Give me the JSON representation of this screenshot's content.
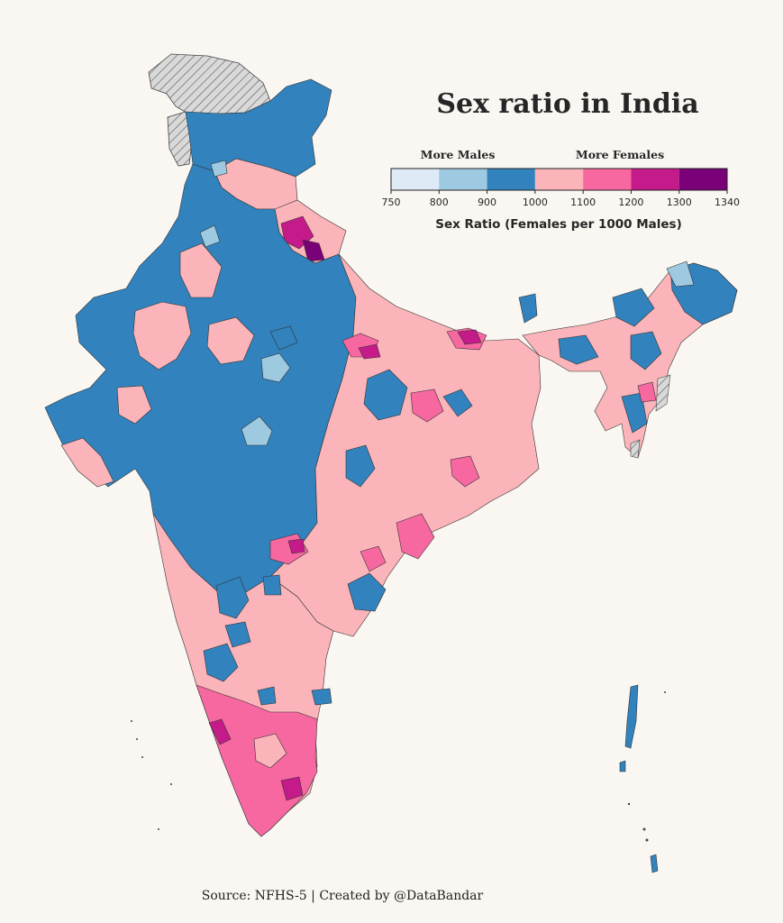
{
  "title": "Sex ratio in India",
  "legend": {
    "label_left": "More Males",
    "label_right": "More Females",
    "axis_title": "Sex Ratio (Females per 1000 Males)",
    "ticks": [
      "750",
      "800",
      "900",
      "1000",
      "1100",
      "1200",
      "1300",
      "1340"
    ],
    "bins": [
      {
        "from": 750,
        "to": 800,
        "color": "#deebf7"
      },
      {
        "from": 800,
        "to": 900,
        "color": "#9ecae1"
      },
      {
        "from": 900,
        "to": 1000,
        "color": "#3182bd"
      },
      {
        "from": 1000,
        "to": 1100,
        "color": "#fbb4b9"
      },
      {
        "from": 1100,
        "to": 1200,
        "color": "#f768a1"
      },
      {
        "from": 1200,
        "to": 1300,
        "color": "#c51b8a"
      },
      {
        "from": 1300,
        "to": 1340,
        "color": "#7a0177"
      }
    ],
    "no_data_pattern": "diagonal-hatch-gray"
  },
  "source": "Source: NFHS-5 | Created by @DataBandar"
}
